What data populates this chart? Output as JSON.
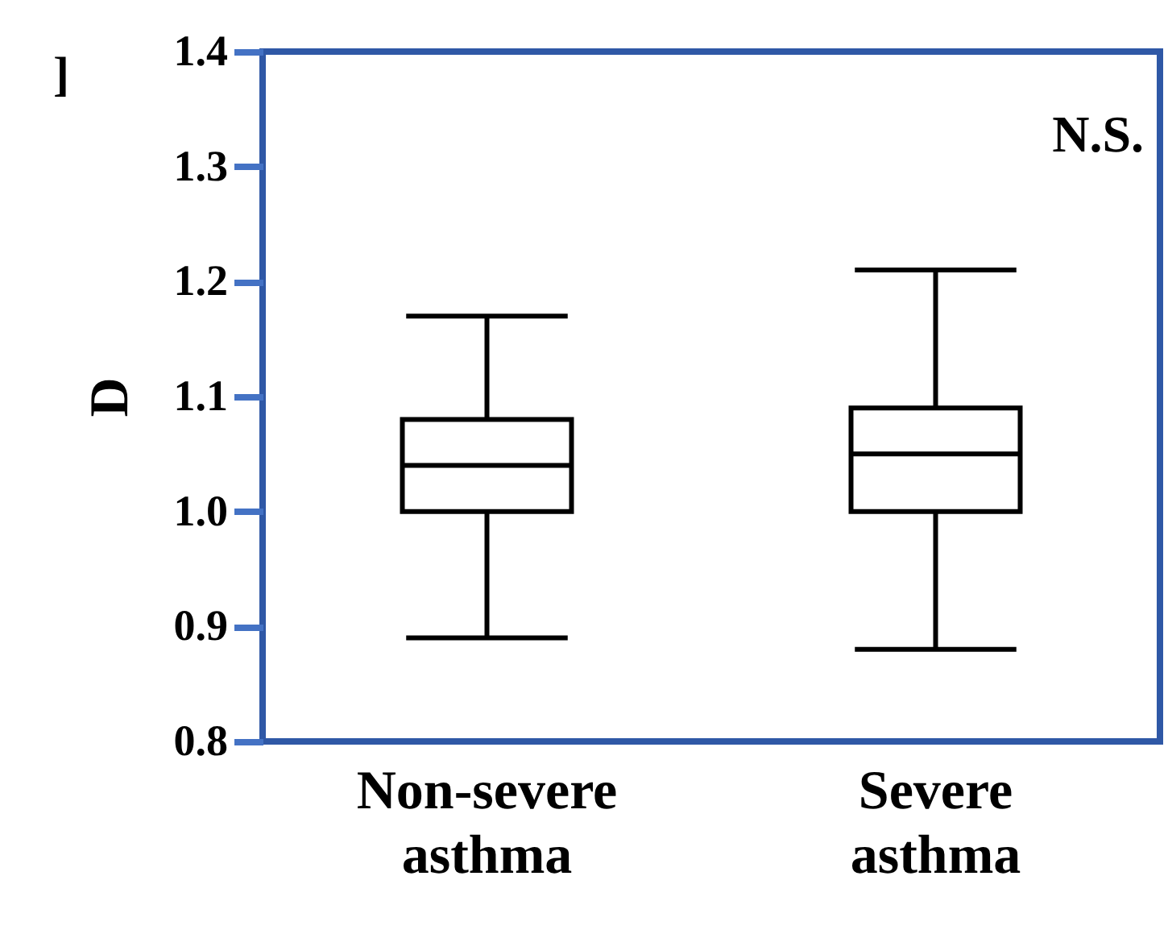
{
  "chart_data": {
    "type": "box",
    "categories": [
      "Non-severe asthma",
      "Severe asthma"
    ],
    "series": [
      {
        "color": "#000000",
        "boxes": [
          {
            "low": 0.89,
            "q1": 1.0,
            "median": 1.04,
            "q3": 1.08,
            "high": 1.17
          },
          {
            "low": 0.88,
            "q1": 1.0,
            "median": 1.05,
            "q3": 1.09,
            "high": 1.21
          }
        ]
      }
    ],
    "ylabel": "D",
    "ylim": [
      0.8,
      1.4
    ],
    "yticks": [
      {
        "value": 0.8,
        "label": "0.8"
      },
      {
        "value": 0.9,
        "label": "0.9"
      },
      {
        "value": 1.0,
        "label": "1.0"
      },
      {
        "value": 1.1,
        "label": "1.1"
      },
      {
        "value": 1.2,
        "label": "1.2"
      },
      {
        "value": 1.3,
        "label": "1.3"
      },
      {
        "value": 1.4,
        "label": "1.4"
      }
    ],
    "annotations": [
      "N.S.",
      "]"
    ],
    "grid": false
  }
}
